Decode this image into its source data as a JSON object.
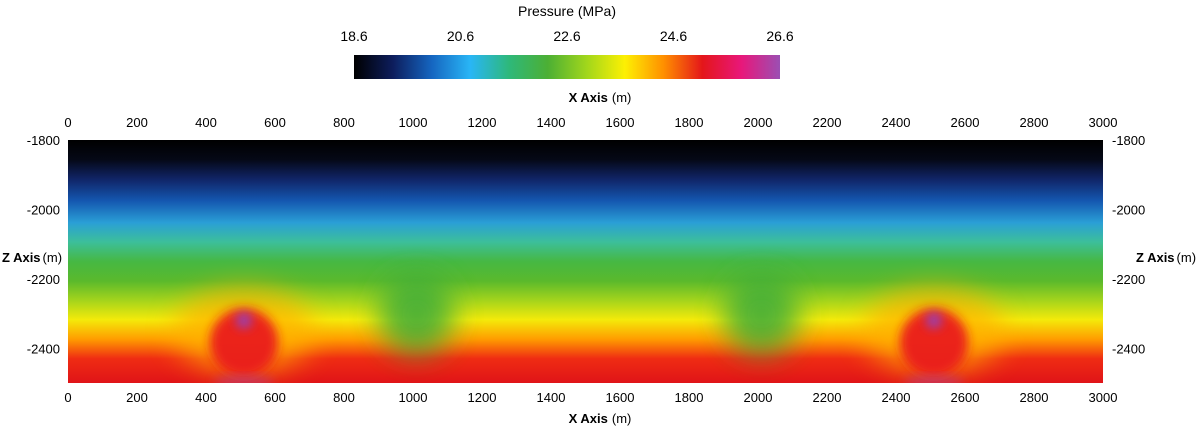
{
  "chart_data": {
    "type": "heatmap",
    "title": "Pressure (MPa)",
    "colorbar": {
      "title": "Pressure (MPa)",
      "ticks": [
        "18.6",
        "20.6",
        "22.6",
        "24.6",
        "26.6"
      ],
      "range": [
        18.6,
        26.6
      ],
      "colors": [
        "#000000",
        "#0d1d5c",
        "#1565c0",
        "#29b6f6",
        "#2eb87a",
        "#4caf34",
        "#a0d61c",
        "#fdf003",
        "#ff8f00",
        "#e4161a",
        "#e8177a",
        "#9b4fb3"
      ]
    },
    "x_axis": {
      "label": "X Axis",
      "unit": "(m)",
      "range": [
        0,
        3000
      ],
      "ticks": [
        "0",
        "200",
        "400",
        "600",
        "800",
        "1000",
        "1200",
        "1400",
        "1600",
        "1800",
        "2000",
        "2200",
        "2400",
        "2600",
        "2800",
        "3000"
      ]
    },
    "z_axis": {
      "label": "Z Axis",
      "unit": "(m)",
      "range": [
        -2500,
        -1800
      ],
      "ticks": [
        "-1800",
        "-2000",
        "-2200",
        "-2400"
      ]
    },
    "field": {
      "description_values": "Pressure increases with depth: about 18.6 MPa at Z=-1800 m to about 25.8 MPa at Z=-2500 m.",
      "top_pressure": 18.6,
      "bottom_pressure": 25.8,
      "high_pressure_sources": [
        {
          "x": 510,
          "z": -2320,
          "peak": 26.6
        },
        {
          "x": 2510,
          "z": -2320,
          "peak": 26.6
        }
      ],
      "low_pressure_dips": [
        {
          "x": 1010,
          "z": -2330
        },
        {
          "x": 2010,
          "z": -2330
        }
      ]
    }
  }
}
